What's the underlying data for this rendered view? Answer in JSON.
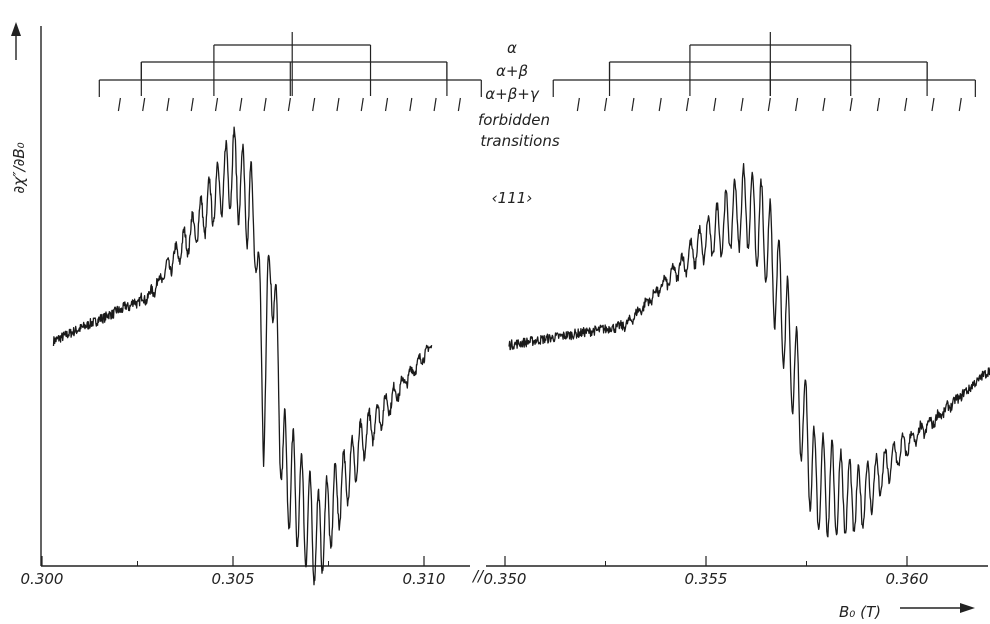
{
  "chart_data": {
    "type": "line",
    "title": "",
    "xlabel": "B₀ (T)",
    "ylabel": "∂χ″/∂B₀",
    "x_break": {
      "left_range": [
        0.3,
        0.311
      ],
      "right_range": [
        0.35,
        0.3625
      ],
      "marker": "//"
    },
    "xticks": [
      {
        "value": 0.3,
        "label": "0.300"
      },
      {
        "value": 0.305,
        "label": "0.305"
      },
      {
        "value": 0.31,
        "label": "0.310"
      },
      {
        "value": 0.35,
        "label": "0.350"
      },
      {
        "value": 0.355,
        "label": "0.355"
      },
      {
        "value": 0.36,
        "label": "0.360"
      }
    ],
    "yticks": [],
    "ylim": [
      -1,
      1
    ],
    "grid": false,
    "orientation_label": "‹111›",
    "legend": {
      "placement": "top-center",
      "entries": [
        "α",
        "α+β",
        "α+β+γ",
        "forbidden",
        "transitions"
      ]
    },
    "series": [
      {
        "segment": "left",
        "x_range": [
          0.3003,
          0.3102
        ],
        "y_start": 0.02,
        "y_end": 0.0,
        "description_points": [
          [
            0.3003,
            0.02
          ],
          [
            0.3028,
            0.25
          ],
          [
            0.3042,
            0.66
          ],
          [
            0.305,
            0.92
          ],
          [
            0.3056,
            0.62
          ],
          [
            0.3058,
            -0.35
          ],
          [
            0.306,
            0.52
          ],
          [
            0.3063,
            -0.6
          ],
          [
            0.3072,
            -1.0
          ],
          [
            0.3085,
            -0.45
          ],
          [
            0.3102,
            0.0
          ]
        ]
      },
      {
        "segment": "right",
        "x_range": [
          0.3501,
          0.3622
        ],
        "y_start": 0.0,
        "y_end": -0.1,
        "description_points": [
          [
            0.3501,
            0.0
          ],
          [
            0.353,
            0.1
          ],
          [
            0.3548,
            0.5
          ],
          [
            0.356,
            0.72
          ],
          [
            0.3565,
            0.55
          ],
          [
            0.357,
            0.1
          ],
          [
            0.3577,
            -0.7
          ],
          [
            0.3588,
            -0.8
          ],
          [
            0.3598,
            -0.55
          ],
          [
            0.3622,
            -0.1
          ]
        ]
      }
    ],
    "stick_diagrams": [
      {
        "segment": "left",
        "levels": [
          {
            "name": "α",
            "x": [
              0.3045,
              0.3086
            ]
          },
          {
            "name": "α+β",
            "x": [
              0.3026,
              0.3106
            ]
          },
          {
            "name": "α+β+γ",
            "x": [
              0.3015,
              0.3115
            ]
          },
          {
            "name": "forbidden transitions",
            "x": [
              0.302,
              0.3109
            ]
          }
        ],
        "lines": [
          0.3026,
          0.3045,
          0.3065,
          0.3086,
          0.3106
        ],
        "forbidden_count": 15
      },
      {
        "segment": "right",
        "levels": [
          {
            "name": "α",
            "x": [
              0.3546,
              0.3586
            ]
          },
          {
            "name": "α+β",
            "x": [
              0.3526,
              0.3605
            ]
          },
          {
            "name": "α+β+γ",
            "x": [
              0.3512,
              0.3617
            ]
          },
          {
            "name": "forbidden transitions",
            "x": [
              0.3518,
              0.3613
            ]
          }
        ],
        "lines": [
          0.3526,
          0.3546,
          0.3566,
          0.3586,
          0.3605
        ],
        "forbidden_count": 15
      }
    ]
  }
}
